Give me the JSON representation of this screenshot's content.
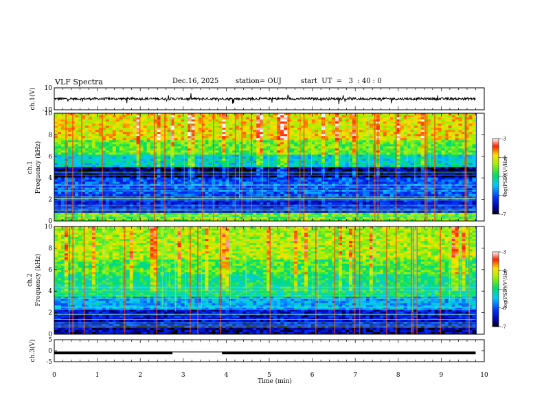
{
  "header": {
    "title": "VLF Spectra",
    "date": "Dec.16, 2025",
    "station": "station= OUJ",
    "start": "start  UT  =   3  : 40 : 0"
  },
  "chart_data": [
    {
      "type": "line",
      "name": "ch1-waveform",
      "ylabel": "ch.1(V)",
      "ylim": [
        -10,
        10
      ],
      "yticks": [
        "10",
        "-10"
      ],
      "xlim": [
        0,
        10
      ],
      "baseline": 0
    },
    {
      "type": "heatmap",
      "name": "ch1-spectrogram",
      "ylabel": "ch.1\nFrequency (kHz)",
      "ylim": [
        0,
        10
      ],
      "yticks": [
        "10",
        "8",
        "6",
        "4",
        "2",
        "0"
      ],
      "xlim": [
        0,
        9.8
      ],
      "colorbar": {
        "range": [
          -7,
          -3
        ],
        "ticks": [
          "-3",
          "-4",
          "-5",
          "-6",
          "-7"
        ],
        "label": "log(PSD)(V²/Hz)"
      },
      "bands_khz": [
        [
          0,
          0.8,
          -4.5
        ],
        [
          0.8,
          2.3,
          -6.3
        ],
        [
          2.3,
          4.0,
          -6.0
        ],
        [
          4.0,
          5.0,
          -6.8
        ],
        [
          5.0,
          6.2,
          -5.3
        ],
        [
          6.2,
          7.5,
          -4.6
        ],
        [
          7.5,
          10,
          -4.0
        ]
      ]
    },
    {
      "type": "heatmap",
      "name": "ch2-spectrogram",
      "ylabel": "ch.2\nFrequency (kHz)",
      "ylim": [
        0,
        10
      ],
      "yticks": [
        "10",
        "8",
        "6",
        "4",
        "2",
        "0"
      ],
      "xlim": [
        0,
        9.8
      ],
      "colorbar": {
        "range": [
          -7,
          -3
        ],
        "ticks": [
          "-3",
          "-4",
          "-5",
          "-6",
          "-7"
        ],
        "label": "log(PSD)(V²/Hz)"
      },
      "bands_khz": [
        [
          0,
          0.8,
          -6.6
        ],
        [
          0.8,
          2.3,
          -6.4
        ],
        [
          2.3,
          3.5,
          -5.6
        ],
        [
          3.5,
          5.5,
          -5.0
        ],
        [
          5.5,
          7.0,
          -4.7
        ],
        [
          7.0,
          10,
          -4.3
        ]
      ]
    },
    {
      "type": "line",
      "name": "ch3-trace",
      "ylabel": "ch.3(V)",
      "ylim": [
        -5,
        5
      ],
      "yticks": [
        "5",
        "0",
        "-5"
      ],
      "xlim": [
        0,
        10
      ],
      "segments": [
        [
          0,
          2.75,
          -1
        ],
        [
          2.75,
          3.9,
          -0.6
        ],
        [
          3.9,
          9.8,
          -1
        ]
      ],
      "xlabel": "Time (min)",
      "xticks": [
        "0",
        "1",
        "2",
        "3",
        "4",
        "5",
        "6",
        "7",
        "8",
        "9",
        "10"
      ]
    }
  ]
}
